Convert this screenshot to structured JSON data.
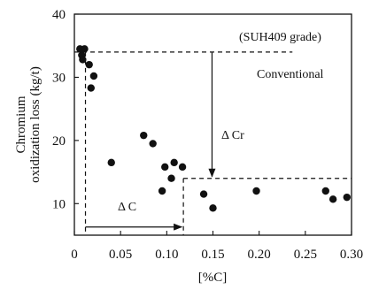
{
  "chart_data": {
    "type": "scatter",
    "title": "",
    "xlabel": "[%C]",
    "ylabel_lines": [
      "Chromium",
      "oxidization loss  (kg/t)"
    ],
    "xlim": [
      0,
      0.3
    ],
    "ylim": [
      5,
      40
    ],
    "x_ticks": [
      0,
      0.05,
      0.1,
      0.15,
      0.2,
      0.25,
      0.3
    ],
    "x_tick_labels": [
      "0",
      "0.05",
      "0.10",
      "0.15",
      "0.20",
      "0.25",
      "0.30"
    ],
    "y_ticks": [
      10,
      20,
      30,
      40
    ],
    "y_tick_labels": [
      "10",
      "20",
      "30",
      "40"
    ],
    "grid": false,
    "points": [
      {
        "x": 0.006,
        "y": 34.5
      },
      {
        "x": 0.011,
        "y": 34.5
      },
      {
        "x": 0.008,
        "y": 33.5
      },
      {
        "x": 0.009,
        "y": 32.8
      },
      {
        "x": 0.016,
        "y": 32.0
      },
      {
        "x": 0.021,
        "y": 30.2
      },
      {
        "x": 0.018,
        "y": 28.3
      },
      {
        "x": 0.04,
        "y": 16.5
      },
      {
        "x": 0.075,
        "y": 20.8
      },
      {
        "x": 0.085,
        "y": 19.5
      },
      {
        "x": 0.095,
        "y": 12.0
      },
      {
        "x": 0.098,
        "y": 15.8
      },
      {
        "x": 0.105,
        "y": 14.0
      },
      {
        "x": 0.108,
        "y": 16.5
      },
      {
        "x": 0.117,
        "y": 15.8
      },
      {
        "x": 0.14,
        "y": 11.5
      },
      {
        "x": 0.15,
        "y": 9.3
      },
      {
        "x": 0.197,
        "y": 12.0
      },
      {
        "x": 0.272,
        "y": 12.0
      },
      {
        "x": 0.28,
        "y": 10.7
      },
      {
        "x": 0.295,
        "y": 11.0
      }
    ],
    "guides": {
      "upper_level": 34,
      "lower_level": 14,
      "low_carbon_boundary": 0.012,
      "high_carbon_boundary": 0.118
    },
    "annotations": {
      "grade": "(SUH409 grade)",
      "conventional": "Conventional",
      "delta_cr": "Δ Cr",
      "delta_c": "Δ C"
    }
  }
}
